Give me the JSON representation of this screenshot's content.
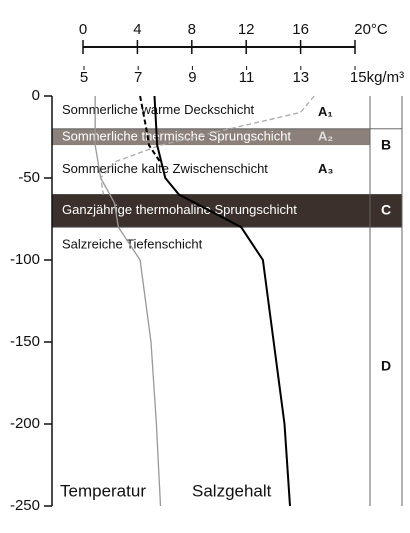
{
  "chart_data": {
    "type": "line",
    "ylim": [
      -250,
      0
    ],
    "yticks": [
      0,
      -50,
      -100,
      -150,
      -200,
      -250
    ],
    "xlim": [
      0,
      20
    ],
    "xticks": [
      0,
      4,
      8,
      12,
      16,
      {
        "value": 20,
        "label": "20°C"
      }
    ],
    "x2lim": [
      5,
      15
    ],
    "x2ticks": [
      5,
      7,
      9,
      11,
      13,
      {
        "value": 15,
        "label": "15kg/m³"
      }
    ],
    "layers": [
      {
        "label": "Sommerliche warme Deckschicht",
        "code": "A₁",
        "top": 0,
        "bottom": -20,
        "color": "#ffffff"
      },
      {
        "label": "Sommerliche thermische Sprungschicht",
        "code": "A₂",
        "top": -20,
        "bottom": -30,
        "color": "#8c817a"
      },
      {
        "label": "Sommerliche kalte Zwischenschicht",
        "code": "A₃",
        "top": -30,
        "bottom": -60,
        "color": "#ffffff"
      },
      {
        "label": "Ganzjährige thermohaline Sprungschicht",
        "top": -60,
        "bottom": -80,
        "color": "#3b302c"
      },
      {
        "label": "Salzreiche Tiefenschicht",
        "top": -80,
        "bottom": -250,
        "color": "#ffffff"
      }
    ],
    "zones": [
      {
        "label": "B",
        "top": -20,
        "bottom": -60
      },
      {
        "label": "C",
        "top": -60,
        "bottom": -80
      },
      {
        "label": "D",
        "top": -80,
        "bottom": -250
      }
    ],
    "series": [
      {
        "name": "Temperatur",
        "axis": "x",
        "color": "#999999",
        "dash": false,
        "depths": [
          0,
          -30,
          -50,
          -65,
          -80,
          -100,
          -150,
          -200,
          -250
        ],
        "values": [
          0.9,
          0.9,
          1.3,
          2.3,
          2.6,
          4.2,
          5.0,
          5.4,
          5.7
        ]
      },
      {
        "axis": "x",
        "color": "#aaaaaa",
        "dash": true,
        "depths": [
          0,
          -10,
          -20,
          -30,
          -40,
          -50,
          -60
        ],
        "values": [
          17.0,
          16.0,
          10.8,
          5.7,
          2.4,
          1.3,
          1.5
        ]
      },
      {
        "name": "Salzgehalt",
        "axis": "x2",
        "color": "#000000",
        "dash": false,
        "depths": [
          0,
          -30,
          -50,
          -60,
          -80,
          -100,
          -150,
          -200,
          -250
        ],
        "values": [
          7.6,
          7.7,
          8.0,
          8.5,
          10.8,
          11.6,
          12.0,
          12.4,
          12.6
        ]
      },
      {
        "axis": "x2",
        "color": "#000000",
        "dash": true,
        "depths": [
          0,
          -20,
          -30,
          -40
        ],
        "values": [
          7.07,
          7.3,
          7.4,
          7.8
        ]
      }
    ]
  }
}
